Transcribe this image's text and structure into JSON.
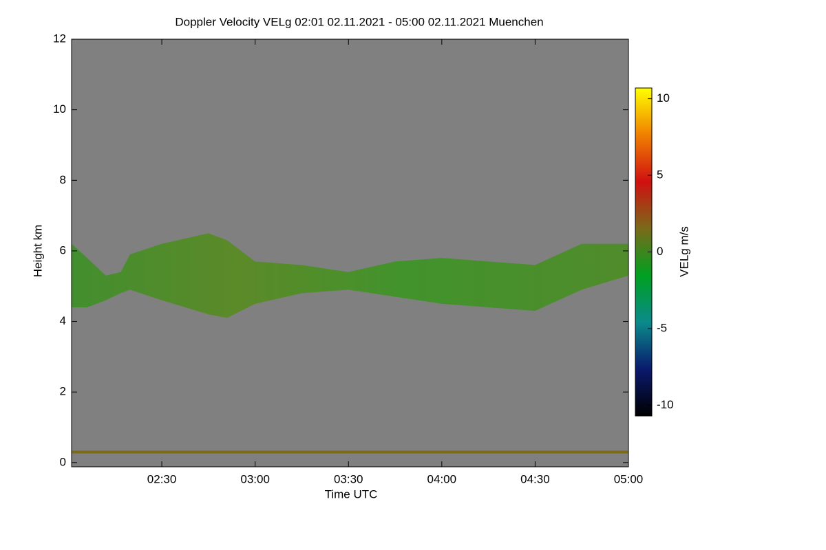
{
  "chart_data": {
    "type": "heatmap",
    "title": "Doppler Velocity VELg   02:01 02.11.2021 - 05:00 02.11.2021 Muenchen",
    "x_label": "Time UTC",
    "y_label": "Height km",
    "colorbar_label": "VELg m/s",
    "background_color": "#808080",
    "xlim": [
      2.0167,
      5.0
    ],
    "xticks": [
      {
        "value": 2.5,
        "label": "02:30"
      },
      {
        "value": 3.0,
        "label": "03:00"
      },
      {
        "value": 3.5,
        "label": "03:30"
      },
      {
        "value": 4.0,
        "label": "04:00"
      },
      {
        "value": 4.5,
        "label": "04:30"
      },
      {
        "value": 5.0,
        "label": "05:00"
      }
    ],
    "ylim": [
      -0.12,
      12
    ],
    "yticks": [
      0,
      2,
      4,
      6,
      8,
      10,
      12
    ],
    "clim": [
      -10.7,
      10.7
    ],
    "cticks": [
      -10,
      -5,
      0,
      5,
      10
    ],
    "colormap": [
      "#000000",
      "#0a1a6e",
      "#0a8a8a",
      "#00a020",
      "#7a6a1a",
      "#d01010",
      "#f08000",
      "#ffff00"
    ],
    "layer": {
      "x": [
        2.0167,
        2.1,
        2.2,
        2.28,
        2.33,
        2.5,
        2.75,
        2.85,
        3.0,
        3.25,
        3.5,
        3.75,
        4.0,
        4.25,
        4.5,
        4.75,
        5.0
      ],
      "top": [
        6.2,
        5.8,
        5.3,
        5.4,
        5.9,
        6.2,
        6.5,
        6.3,
        5.7,
        5.6,
        5.4,
        5.7,
        5.8,
        5.7,
        5.6,
        6.2,
        6.2
      ],
      "base": [
        4.4,
        4.4,
        4.6,
        4.8,
        4.9,
        4.6,
        4.2,
        4.1,
        4.5,
        4.8,
        4.9,
        4.7,
        4.5,
        4.4,
        4.3,
        4.9,
        5.3
      ],
      "value": -1.5
    },
    "surface_height": 0.3,
    "surface_value": 0.5
  }
}
